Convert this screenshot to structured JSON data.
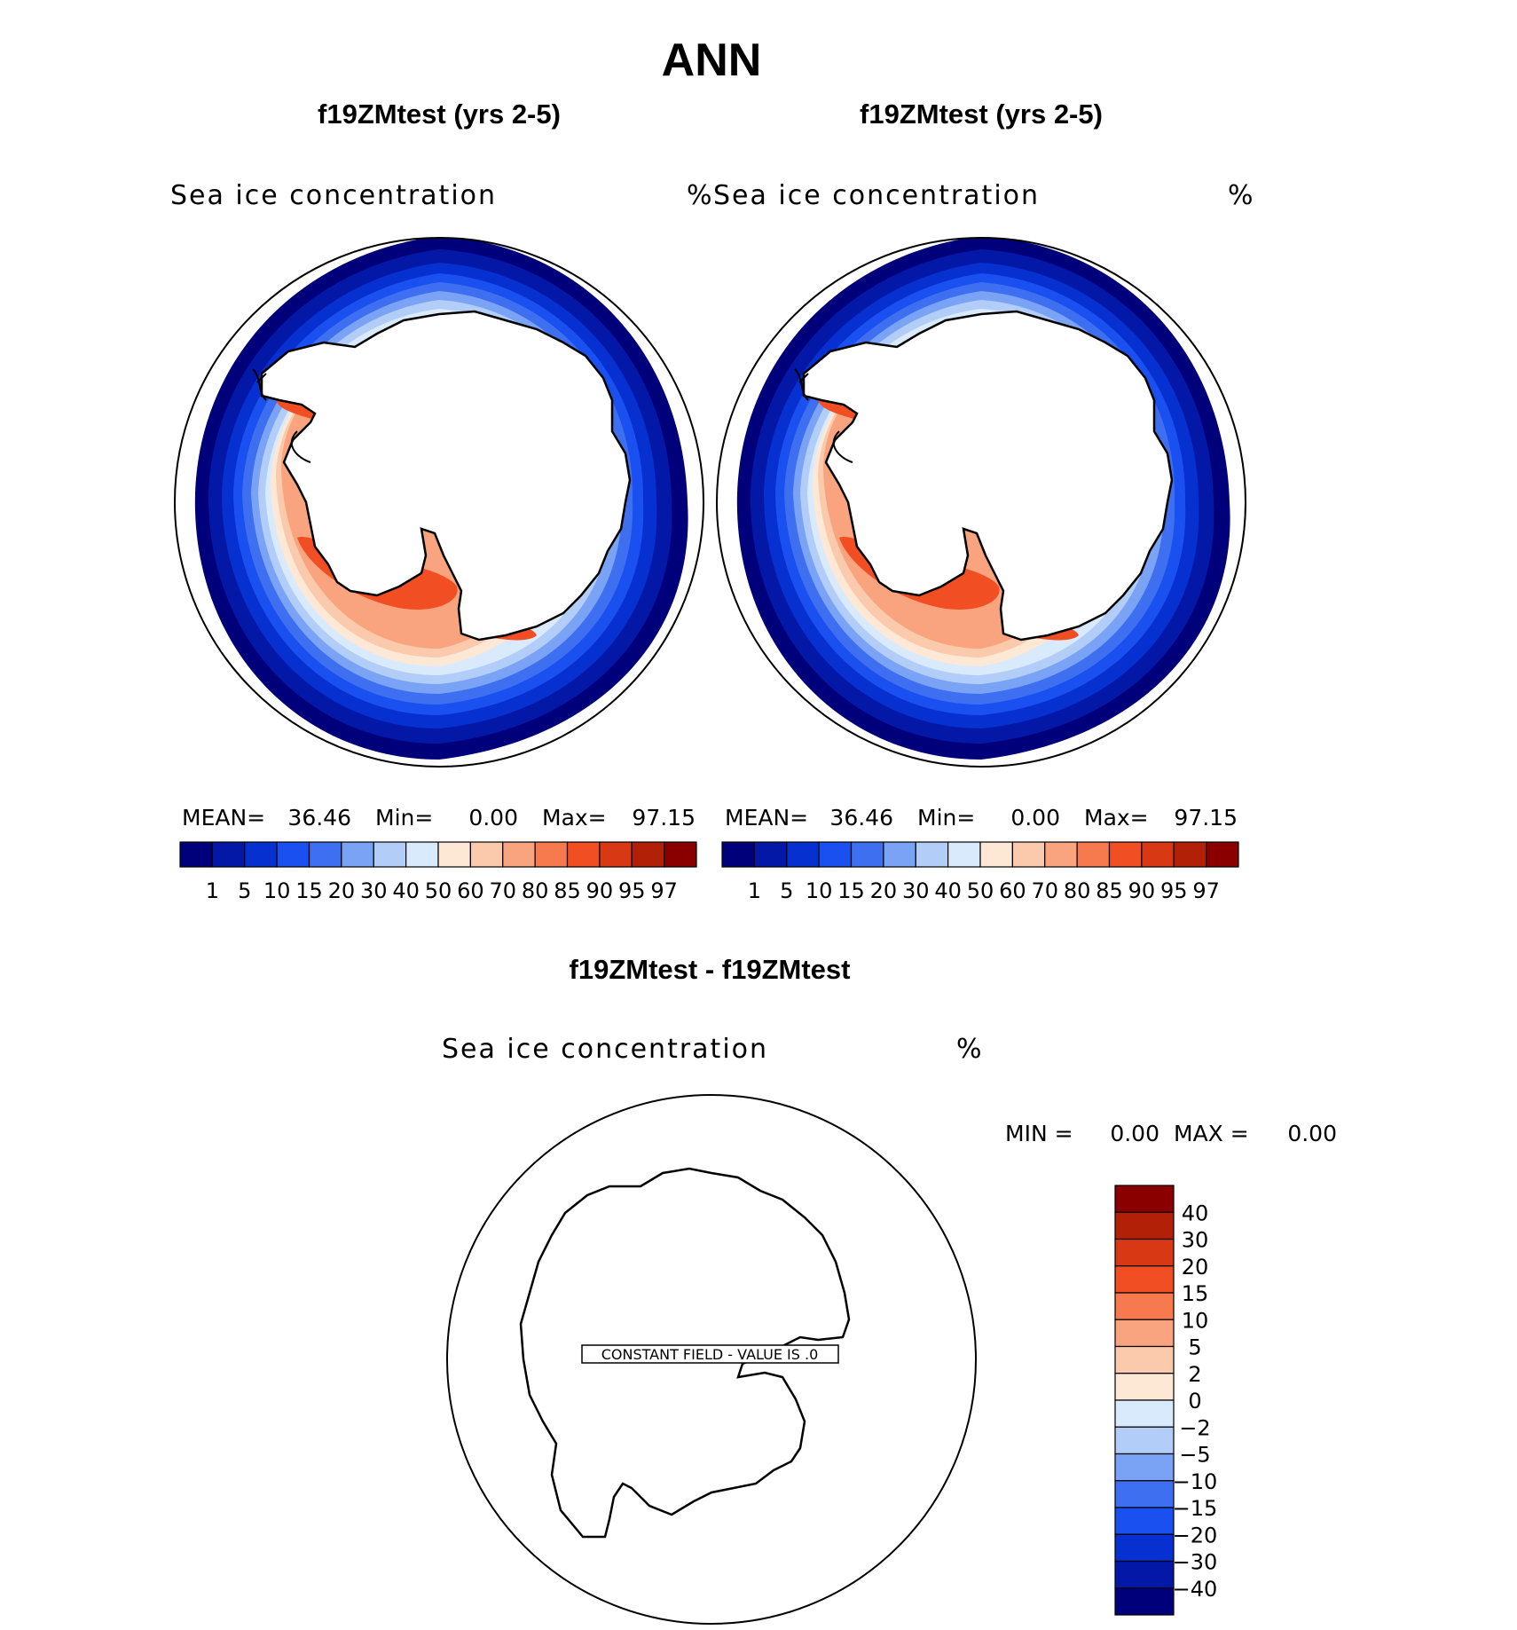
{
  "title": "ANN",
  "panels": [
    {
      "case_title": "f19ZMtest (yrs 2-5)",
      "variable": "Sea ice concentration",
      "units": "%",
      "stats_text": {
        "mean_label": "MEAN=",
        "mean": "36.46",
        "min_label": "Min=",
        "min": "0.00",
        "max_label": "Max=",
        "max": "97.15"
      }
    },
    {
      "case_title": "f19ZMtest (yrs 2-5)",
      "variable": "Sea ice concentration",
      "units": "%",
      "stats_text": {
        "mean_label": "MEAN=",
        "mean": "36.46",
        "min_label": "Min=",
        "min": "0.00",
        "max_label": "Max=",
        "max": "97.15"
      }
    }
  ],
  "diff_panel": {
    "case_title": "f19ZMtest - f19ZMtest",
    "variable": "Sea ice concentration",
    "units": "%",
    "min_label": "MIN =",
    "min": "0.00",
    "max_label": "MAX =",
    "max": "0.00",
    "constant_field_label": "CONSTANT FIELD - VALUE IS .0"
  },
  "chart_data": [
    {
      "type": "heatmap",
      "projection": "south-polar-stereographic",
      "title": "f19ZMtest (yrs 2-5)",
      "variable": "Sea ice concentration",
      "units": "%",
      "mean": 36.46,
      "min": 0.0,
      "max": 97.15,
      "legend_position": "bottom",
      "colorbar": {
        "tick_labels": [
          "1",
          "5",
          "10",
          "15",
          "20",
          "30",
          "40",
          "50",
          "60",
          "70",
          "80",
          "85",
          "90",
          "95",
          "97"
        ],
        "colors": [
          "#00007b",
          "#0418a8",
          "#0630d0",
          "#1a4ff0",
          "#3d6ff0",
          "#7aa3f5",
          "#b2cdf8",
          "#d9eafc",
          "#fde8d6",
          "#fbc9ac",
          "#f9a47f",
          "#f67a4e",
          "#f14e23",
          "#d83814",
          "#b22008",
          "#8a0000"
        ]
      }
    },
    {
      "type": "heatmap",
      "projection": "south-polar-stereographic",
      "title": "f19ZMtest (yrs 2-5)",
      "variable": "Sea ice concentration",
      "units": "%",
      "mean": 36.46,
      "min": 0.0,
      "max": 97.15,
      "legend_position": "bottom",
      "colorbar": {
        "tick_labels": [
          "1",
          "5",
          "10",
          "15",
          "20",
          "30",
          "40",
          "50",
          "60",
          "70",
          "80",
          "85",
          "90",
          "95",
          "97"
        ],
        "colors": [
          "#00007b",
          "#0418a8",
          "#0630d0",
          "#1a4ff0",
          "#3d6ff0",
          "#7aa3f5",
          "#b2cdf8",
          "#d9eafc",
          "#fde8d6",
          "#fbc9ac",
          "#f9a47f",
          "#f67a4e",
          "#f14e23",
          "#d83814",
          "#b22008",
          "#8a0000"
        ]
      }
    },
    {
      "type": "heatmap",
      "projection": "south-polar-stereographic",
      "title": "f19ZMtest - f19ZMtest",
      "variable": "Sea ice concentration",
      "units": "%",
      "min": 0.0,
      "max": 0.0,
      "constant_value": 0,
      "legend_position": "right",
      "colorbar": {
        "tick_labels": [
          "40",
          "30",
          "20",
          "15",
          "10",
          "5",
          "2",
          "0",
          "-2",
          "-5",
          "-10",
          "-15",
          "-20",
          "-30",
          "-40"
        ],
        "colors": [
          "#8a0000",
          "#b22008",
          "#d83814",
          "#f14e23",
          "#f67a4e",
          "#f9a47f",
          "#fbc9ac",
          "#fde8d6",
          "#d9eafc",
          "#b2cdf8",
          "#7aa3f5",
          "#3d6ff0",
          "#1a4ff0",
          "#0630d0",
          "#0418a8",
          "#00007b"
        ]
      }
    }
  ]
}
